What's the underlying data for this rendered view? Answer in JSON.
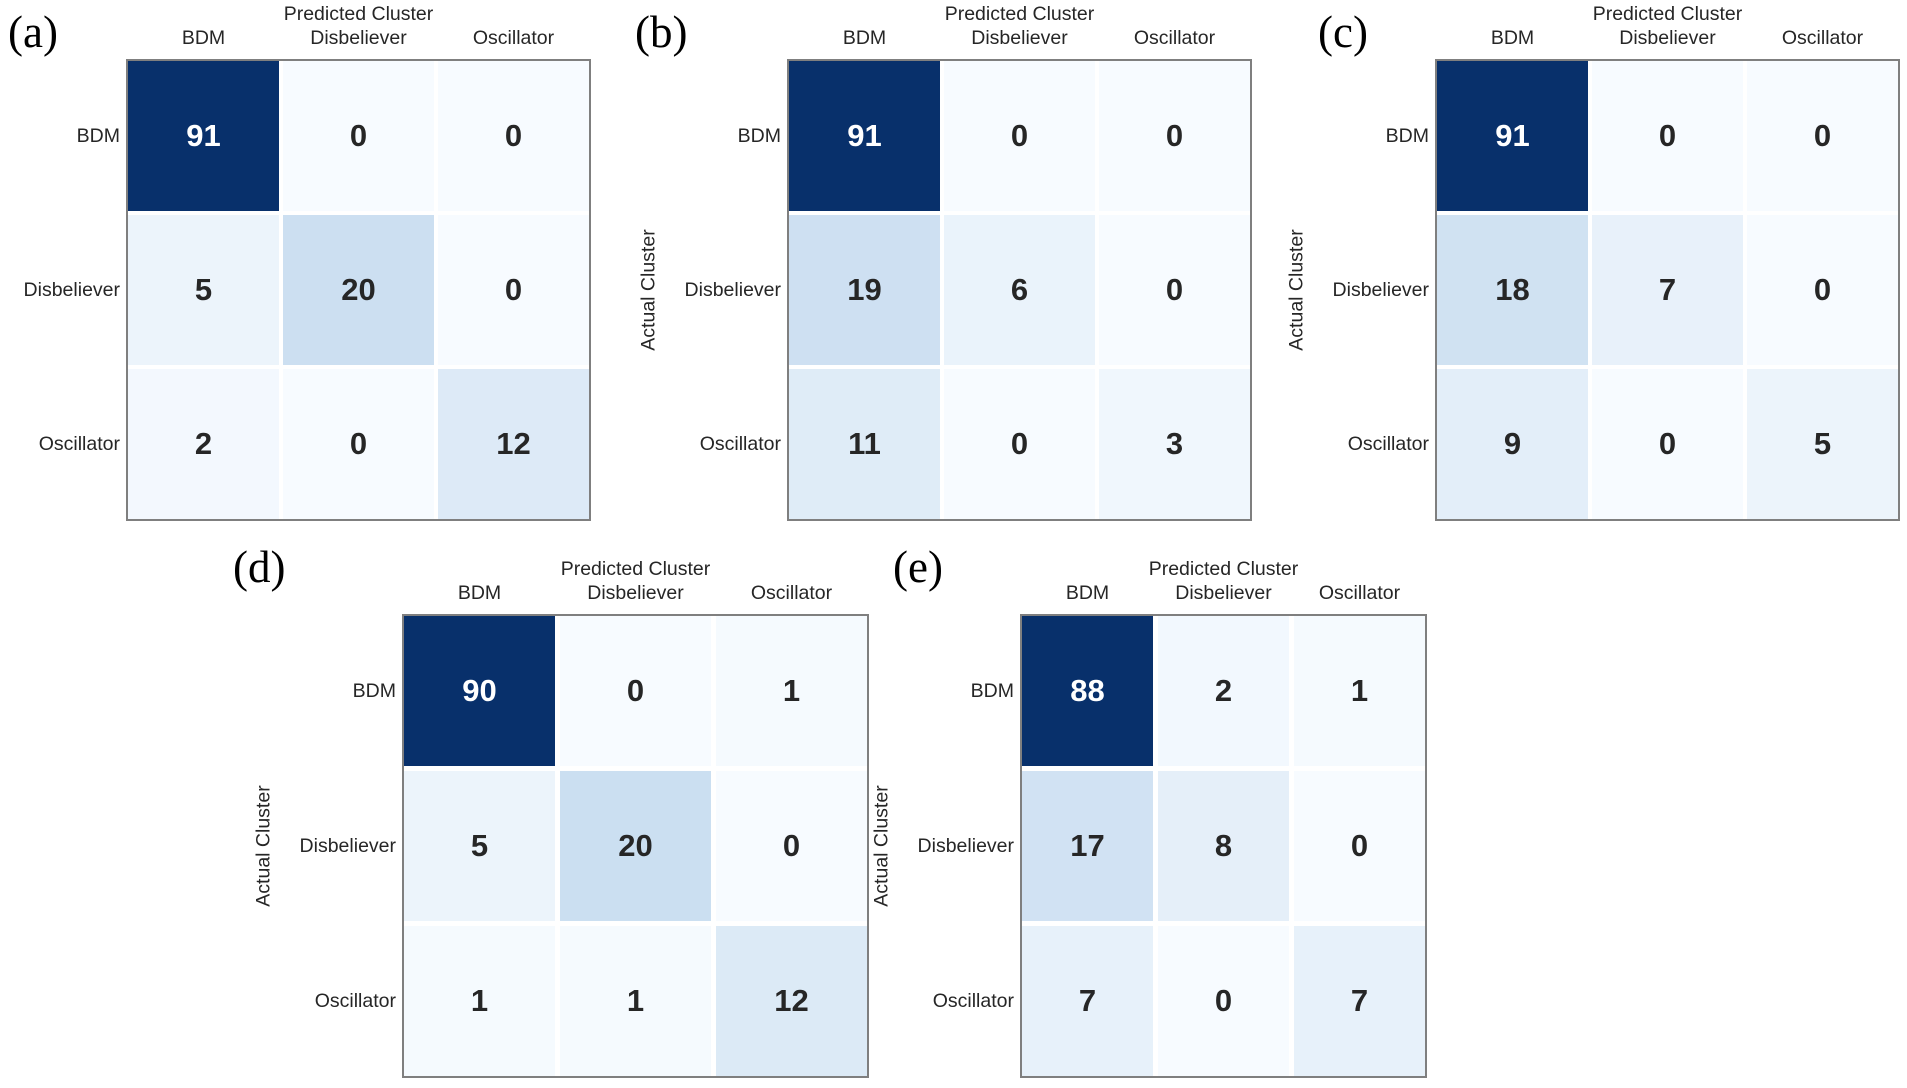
{
  "figure": {
    "description": "Five 3x3 confusion matrices comparing actual vs predicted agent clusters",
    "shared_x_axis_title": "Predicted Cluster",
    "shared_y_axis_title": "Actual Cluster",
    "classes": [
      "BDM",
      "Disbeliever",
      "Oscillator"
    ]
  },
  "colors": {
    "background": "#ffffff",
    "grid_border": "#7f7f7f",
    "cell_gap": "#ffffff",
    "label_text": "#262626",
    "value_text_dark": "#262626",
    "value_text_light": "#ffffff",
    "letter_text": "#000000",
    "colormap_name": "Blues",
    "colormap_stops": [
      "#f7fbff",
      "#deebf7",
      "#c6dbef",
      "#9ecae1",
      "#6baed6",
      "#4292c6",
      "#2171b5",
      "#08519c",
      "#08306b"
    ]
  },
  "chart_data": [
    {
      "type": "heatmap",
      "panel_label": "(a)",
      "x_axis_title": "Predicted Cluster",
      "y_axis_title": "",
      "x_categories": [
        "BDM",
        "Disbeliever",
        "Oscillator"
      ],
      "y_categories": [
        "BDM",
        "Disbeliever",
        "Oscillator"
      ],
      "rows": [
        [
          91,
          0,
          0
        ],
        [
          5,
          20,
          0
        ],
        [
          2,
          0,
          12
        ]
      ],
      "vmin": 0,
      "vmax": 91
    },
    {
      "type": "heatmap",
      "panel_label": "(b)",
      "x_axis_title": "Predicted Cluster",
      "y_axis_title": "Actual Cluster",
      "x_categories": [
        "BDM",
        "Disbeliever",
        "Oscillator"
      ],
      "y_categories": [
        "BDM",
        "Disbeliever",
        "Oscillator"
      ],
      "rows": [
        [
          91,
          0,
          0
        ],
        [
          19,
          6,
          0
        ],
        [
          11,
          0,
          3
        ]
      ],
      "vmin": 0,
      "vmax": 91
    },
    {
      "type": "heatmap",
      "panel_label": "(c)",
      "x_axis_title": "Predicted Cluster",
      "y_axis_title": "Actual Cluster",
      "x_categories": [
        "BDM",
        "Disbeliever",
        "Oscillator"
      ],
      "y_categories": [
        "BDM",
        "Disbeliever",
        "Oscillator"
      ],
      "rows": [
        [
          91,
          0,
          0
        ],
        [
          18,
          7,
          0
        ],
        [
          9,
          0,
          5
        ]
      ],
      "vmin": 0,
      "vmax": 91
    },
    {
      "type": "heatmap",
      "panel_label": "(d)",
      "x_axis_title": "Predicted Cluster",
      "y_axis_title": "Actual Cluster",
      "x_categories": [
        "BDM",
        "Disbeliever",
        "Oscillator"
      ],
      "y_categories": [
        "BDM",
        "Disbeliever",
        "Oscillator"
      ],
      "rows": [
        [
          90,
          0,
          1
        ],
        [
          5,
          20,
          0
        ],
        [
          1,
          1,
          12
        ]
      ],
      "vmin": 0,
      "vmax": 90
    },
    {
      "type": "heatmap",
      "panel_label": "(e)",
      "x_axis_title": "Predicted Cluster",
      "y_axis_title": "Actual Cluster",
      "x_categories": [
        "BDM",
        "Disbeliever",
        "Oscillator"
      ],
      "y_categories": [
        "BDM",
        "Disbeliever",
        "Oscillator"
      ],
      "rows": [
        [
          88,
          2,
          1
        ],
        [
          17,
          8,
          0
        ],
        [
          7,
          0,
          7
        ]
      ],
      "vmin": 0,
      "vmax": 88
    }
  ]
}
